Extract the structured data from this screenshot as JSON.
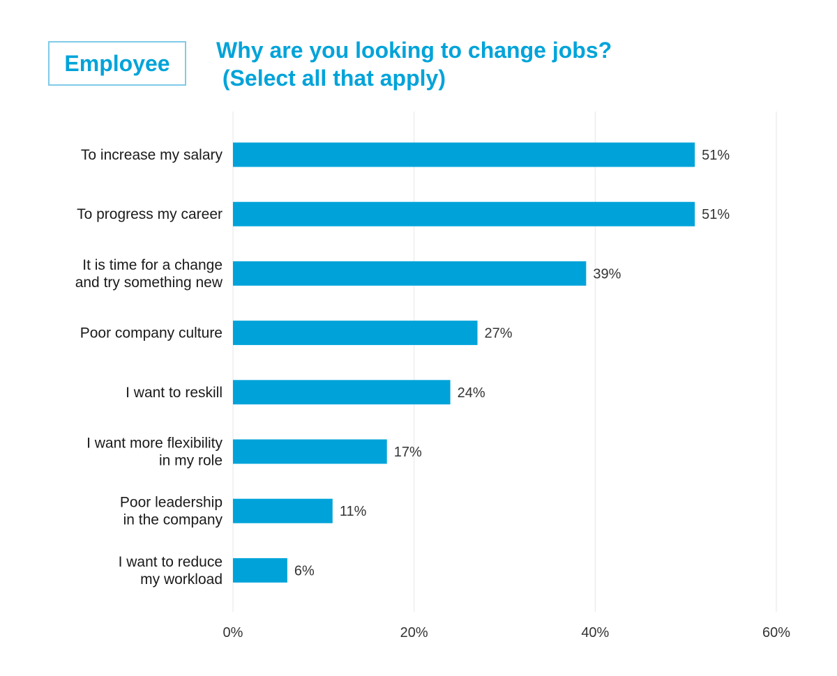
{
  "header": {
    "badge": "Employee",
    "title_line1": "Why are you looking to change jobs?",
    "title_line2": " (Select all that apply)"
  },
  "chart_data": {
    "type": "bar",
    "orientation": "horizontal",
    "categories": [
      [
        "To increase my salary"
      ],
      [
        "To progress my career"
      ],
      [
        "It is time for a change",
        "and try something new"
      ],
      [
        "Poor company culture"
      ],
      [
        "I want to reskill"
      ],
      [
        "I want more flexibility",
        "in my role"
      ],
      [
        "Poor leadership",
        "in the company"
      ],
      [
        "I want to reduce",
        "my workload"
      ]
    ],
    "values": [
      51,
      51,
      39,
      27,
      24,
      17,
      11,
      6
    ],
    "value_labels": [
      "51%",
      "51%",
      "39%",
      "27%",
      "24%",
      "17%",
      "11%",
      "6%"
    ],
    "xlim": [
      0,
      60
    ],
    "xticks": [
      0,
      20,
      40,
      60
    ],
    "xtick_labels": [
      "0%",
      "20%",
      "40%",
      "60%"
    ],
    "grid": true,
    "bar_color": "#00a3d9",
    "title": "Why are you looking to change jobs? (Select all that apply)"
  }
}
